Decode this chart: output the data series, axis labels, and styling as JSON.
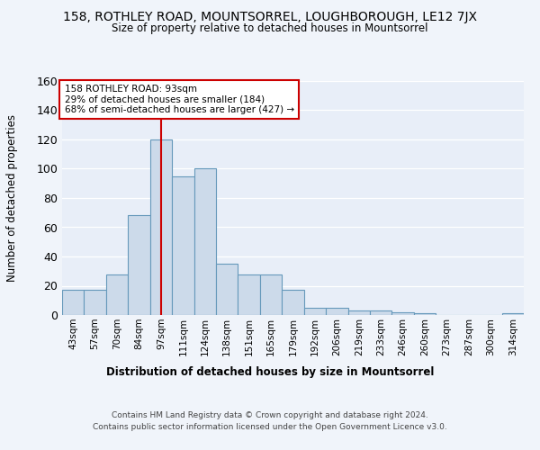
{
  "title": "158, ROTHLEY ROAD, MOUNTSORREL, LOUGHBOROUGH, LE12 7JX",
  "subtitle": "Size of property relative to detached houses in Mountsorrel",
  "xlabel": "Distribution of detached houses by size in Mountsorrel",
  "ylabel": "Number of detached properties",
  "categories": [
    "43sqm",
    "57sqm",
    "70sqm",
    "84sqm",
    "97sqm",
    "111sqm",
    "124sqm",
    "138sqm",
    "151sqm",
    "165sqm",
    "179sqm",
    "192sqm",
    "206sqm",
    "219sqm",
    "233sqm",
    "246sqm",
    "260sqm",
    "273sqm",
    "287sqm",
    "300sqm",
    "314sqm"
  ],
  "values": [
    17,
    17,
    28,
    68,
    120,
    95,
    100,
    35,
    28,
    28,
    17,
    5,
    5,
    3,
    3,
    2,
    1,
    0,
    0,
    0,
    1
  ],
  "bar_color": "#ccdaea",
  "bar_edge_color": "#6699bb",
  "property_line_x": 4,
  "property_line_label": "158 ROTHLEY ROAD: 93sqm",
  "annotation_line1": "29% of detached houses are smaller (184)",
  "annotation_line2": "68% of semi-detached houses are larger (427) →",
  "annotation_box_color": "#ffffff",
  "annotation_box_edge": "#cc0000",
  "vline_color": "#cc0000",
  "ylim": [
    0,
    160
  ],
  "yticks": [
    0,
    20,
    40,
    60,
    80,
    100,
    120,
    140,
    160
  ],
  "footnote1": "Contains HM Land Registry data © Crown copyright and database right 2024.",
  "footnote2": "Contains public sector information licensed under the Open Government Licence v3.0.",
  "bg_color": "#f0f4fa",
  "plot_bg_color": "#e8eef8",
  "grid_color": "#ffffff"
}
